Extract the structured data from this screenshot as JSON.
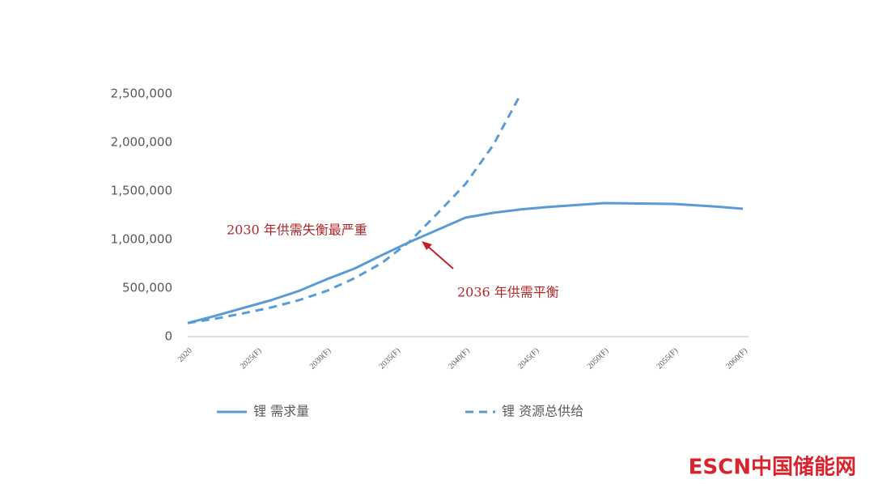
{
  "chart_data": {
    "type": "line",
    "x": [
      2020,
      2022,
      2024,
      2026,
      2028,
      2030,
      2032,
      2034,
      2036,
      2038,
      2040,
      2042,
      2044,
      2046,
      2048,
      2050,
      2052,
      2055,
      2058,
      2060
    ],
    "series": [
      {
        "name": "锂 需求量",
        "color": "#5b9bd5",
        "dash": false,
        "values": [
          140000,
          215000,
          295000,
          375000,
          470000,
          590000,
          700000,
          840000,
          975000,
          1100000,
          1225000,
          1275000,
          1310000,
          1335000,
          1355000,
          1375000,
          1372000,
          1367000,
          1340000,
          1317000
        ]
      },
      {
        "name": "锂 资源总供给",
        "color": "#5b9bd5",
        "dash": true,
        "values": [
          140000,
          185000,
          240000,
          300000,
          375000,
          470000,
          600000,
          760000,
          980000,
          1270000,
          1570000,
          1970000,
          2500000,
          null,
          null,
          null,
          null,
          null,
          null,
          null
        ]
      }
    ],
    "xlim": [
      2020,
      2060
    ],
    "xticks": [
      2020,
      {
        "value": 2025,
        "label": "2025(F)"
      },
      {
        "value": 2030,
        "label": "2030(F)"
      },
      {
        "value": 2035,
        "label": "2035(F)"
      },
      {
        "value": 2040,
        "label": "2040(F)"
      },
      {
        "value": 2045,
        "label": "2045(F)"
      },
      {
        "value": 2050,
        "label": "2050(F)"
      },
      {
        "value": 2055,
        "label": "2055(F)"
      },
      {
        "value": 2060,
        "label": "2060(F)"
      }
    ],
    "ylim": [
      0,
      2500000
    ],
    "yticks": [
      0,
      {
        "value": 500000,
        "label": "500,000"
      },
      {
        "value": 1000000,
        "label": "1,000,000"
      },
      {
        "value": 1500000,
        "label": "1,500,000"
      },
      {
        "value": 2000000,
        "label": "2,000,000"
      },
      {
        "value": 2500000,
        "label": "2,500,000"
      }
    ],
    "annotations": [
      "2030 年供需失衡最严重",
      "2036 年供需平衡"
    ],
    "watermark": "ESCN中国储能网"
  }
}
